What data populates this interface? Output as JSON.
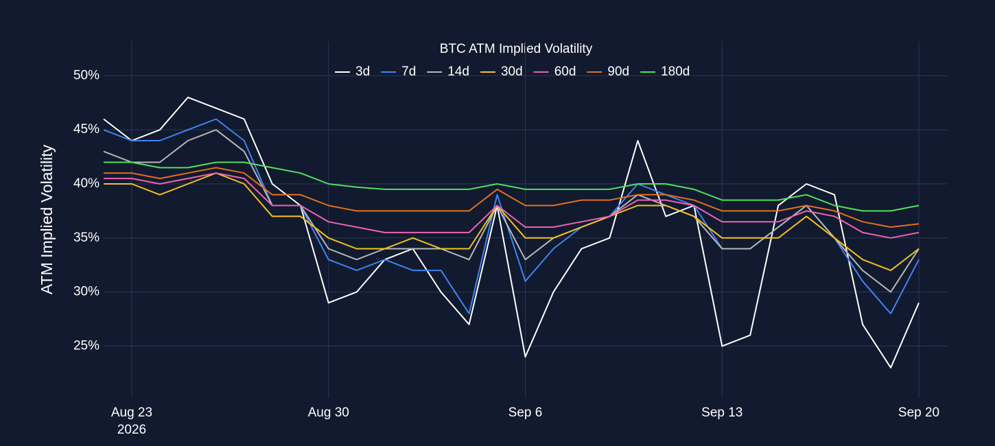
{
  "chart_data": {
    "type": "line",
    "title": "BTC ATM Implied Volatility",
    "y_axis_label": "ATM Implied Volatility",
    "x": [
      "2026-08-22",
      "2026-08-23",
      "2026-08-24",
      "2026-08-25",
      "2026-08-26",
      "2026-08-27",
      "2026-08-28",
      "2026-08-29",
      "2026-08-30",
      "2026-08-31",
      "2026-09-01",
      "2026-09-02",
      "2026-09-03",
      "2026-09-04",
      "2026-09-05",
      "2026-09-06",
      "2026-09-07",
      "2026-09-08",
      "2026-09-09",
      "2026-09-10",
      "2026-09-11",
      "2026-09-12",
      "2026-09-13",
      "2026-09-14",
      "2026-09-15",
      "2026-09-16",
      "2026-09-17",
      "2026-09-18",
      "2026-09-19",
      "2026-09-20"
    ],
    "xlim": [
      "2026-08-22",
      "2026-09-21"
    ],
    "xticks": [
      {
        "value": "2026-08-23",
        "label": "Aug 23\n2026"
      },
      {
        "value": "2026-08-30",
        "label": "Aug 30"
      },
      {
        "value": "2026-09-06",
        "label": "Sep 6"
      },
      {
        "value": "2026-09-13",
        "label": "Sep 13"
      },
      {
        "value": "2026-09-20",
        "label": "Sep 20"
      }
    ],
    "ylim": [
      20.2,
      53.2
    ],
    "yticks": [
      {
        "value": 25,
        "label": "25%"
      },
      {
        "value": 30,
        "label": "30%"
      },
      {
        "value": 35,
        "label": "35%"
      },
      {
        "value": 40,
        "label": "40%"
      },
      {
        "value": 45,
        "label": "45%"
      },
      {
        "value": 50,
        "label": "50%"
      }
    ],
    "grid": true,
    "legend": "top",
    "series": [
      {
        "name": "3d",
        "color": "#ffffff",
        "values": [
          46,
          44,
          45,
          48,
          47,
          46,
          40,
          38,
          29,
          30,
          33,
          34,
          30,
          27,
          38,
          24,
          30,
          34,
          35,
          44,
          37,
          38,
          25,
          26,
          38,
          40,
          39,
          27,
          23,
          29
        ]
      },
      {
        "name": "7d",
        "color": "#3d85f5",
        "values": [
          45,
          44,
          44,
          45,
          46,
          44,
          38,
          38,
          33,
          32,
          33,
          32,
          32,
          28,
          39,
          31,
          34,
          36,
          37,
          40,
          39,
          38,
          34,
          34,
          36,
          38,
          35,
          31,
          28,
          33
        ]
      },
      {
        "name": "14d",
        "color": "#b8b8b8",
        "values": [
          43,
          42,
          42,
          44,
          45,
          43,
          38,
          38,
          34,
          33,
          34,
          34,
          34,
          33,
          38,
          33,
          35,
          36,
          37,
          39,
          38,
          37,
          34,
          34,
          36,
          38,
          35,
          32,
          30,
          34
        ]
      },
      {
        "name": "30d",
        "color": "#f5c21b",
        "values": [
          40,
          40,
          39,
          40,
          41,
          40,
          37,
          37,
          35,
          34,
          34,
          35,
          34,
          34,
          38,
          35,
          35,
          36,
          37,
          38,
          38,
          37,
          35,
          35,
          35,
          37,
          35,
          33,
          32,
          34
        ]
      },
      {
        "name": "60d",
        "color": "#f062b4",
        "values": [
          40.5,
          40.5,
          40,
          40.5,
          41,
          40.5,
          38,
          38,
          36.5,
          36,
          35.5,
          35.5,
          35.5,
          35.5,
          38,
          36,
          36,
          36.5,
          37,
          38.5,
          38.5,
          38,
          36.5,
          36.5,
          36.5,
          37.5,
          37,
          35.5,
          35,
          35.5
        ]
      },
      {
        "name": "90d",
        "color": "#e3701c",
        "values": [
          41,
          41,
          40.5,
          41,
          41.5,
          41,
          39,
          39,
          38,
          37.5,
          37.5,
          37.5,
          37.5,
          37.5,
          39.5,
          38,
          38,
          38.5,
          38.5,
          39,
          39,
          38.5,
          37.5,
          37.5,
          37.5,
          38,
          37.5,
          36.5,
          36,
          36.3
        ]
      },
      {
        "name": "180d",
        "color": "#4be35f",
        "values": [
          42,
          42,
          41.5,
          41.5,
          42,
          42,
          41.5,
          41,
          40,
          39.7,
          39.5,
          39.5,
          39.5,
          39.5,
          40,
          39.5,
          39.5,
          39.5,
          39.5,
          40,
          40,
          39.5,
          38.5,
          38.5,
          38.5,
          39,
          38,
          37.5,
          37.5,
          38
        ]
      }
    ]
  }
}
